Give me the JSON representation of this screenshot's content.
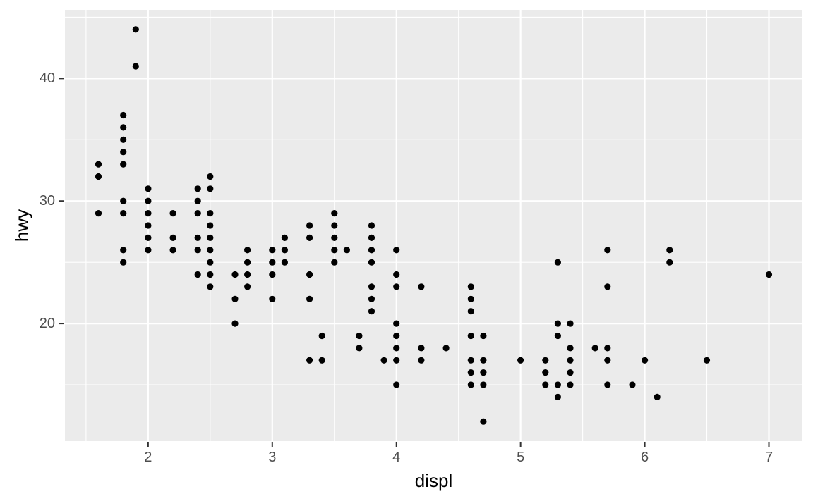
{
  "chart_data": {
    "type": "scatter",
    "title": "",
    "xlabel": "displ",
    "ylabel": "hwy",
    "xlim": [
      1.33,
      7.27
    ],
    "ylim": [
      10.4,
      45.6
    ],
    "x_ticks": [
      2,
      3,
      4,
      5,
      6,
      7
    ],
    "y_ticks": [
      20,
      30,
      40
    ],
    "x_minor_ticks": [
      1.5,
      2.5,
      3.5,
      4.5,
      5.5,
      6.5
    ],
    "y_minor_ticks": [
      15,
      25,
      35,
      45
    ],
    "grid": true,
    "legend_position": "none",
    "theme": {
      "panel_background": "#EBEBEB",
      "grid_color": "#FFFFFF",
      "point_color": "#000000",
      "tick_label_color": "#4D4D4D",
      "axis_title_color": "#000000",
      "tick_mark_color": "#333333",
      "figure_background": "#FFFFFF"
    },
    "points": [
      [
        1.6,
        29
      ],
      [
        1.6,
        32
      ],
      [
        1.6,
        33
      ],
      [
        1.8,
        25
      ],
      [
        1.8,
        26
      ],
      [
        1.8,
        29
      ],
      [
        1.8,
        30
      ],
      [
        1.8,
        33
      ],
      [
        1.8,
        34
      ],
      [
        1.8,
        35
      ],
      [
        1.8,
        36
      ],
      [
        1.8,
        37
      ],
      [
        1.9,
        41
      ],
      [
        1.9,
        44
      ],
      [
        2.0,
        26
      ],
      [
        2.0,
        27
      ],
      [
        2.0,
        28
      ],
      [
        2.0,
        29
      ],
      [
        2.0,
        30
      ],
      [
        2.0,
        31
      ],
      [
        2.2,
        26
      ],
      [
        2.2,
        27
      ],
      [
        2.2,
        29
      ],
      [
        2.4,
        24
      ],
      [
        2.4,
        26
      ],
      [
        2.4,
        27
      ],
      [
        2.4,
        29
      ],
      [
        2.4,
        30
      ],
      [
        2.4,
        31
      ],
      [
        2.5,
        23
      ],
      [
        2.5,
        24
      ],
      [
        2.5,
        25
      ],
      [
        2.5,
        26
      ],
      [
        2.5,
        27
      ],
      [
        2.5,
        28
      ],
      [
        2.5,
        29
      ],
      [
        2.5,
        31
      ],
      [
        2.5,
        32
      ],
      [
        2.7,
        20
      ],
      [
        2.7,
        22
      ],
      [
        2.7,
        24
      ],
      [
        2.8,
        23
      ],
      [
        2.8,
        24
      ],
      [
        2.8,
        25
      ],
      [
        2.8,
        26
      ],
      [
        3.0,
        22
      ],
      [
        3.0,
        24
      ],
      [
        3.0,
        25
      ],
      [
        3.0,
        26
      ],
      [
        3.1,
        25
      ],
      [
        3.1,
        26
      ],
      [
        3.1,
        27
      ],
      [
        3.3,
        17
      ],
      [
        3.3,
        22
      ],
      [
        3.3,
        24
      ],
      [
        3.3,
        27
      ],
      [
        3.3,
        28
      ],
      [
        3.4,
        17
      ],
      [
        3.4,
        19
      ],
      [
        3.5,
        25
      ],
      [
        3.5,
        26
      ],
      [
        3.5,
        27
      ],
      [
        3.5,
        28
      ],
      [
        3.5,
        29
      ],
      [
        3.6,
        26
      ],
      [
        3.7,
        18
      ],
      [
        3.7,
        19
      ],
      [
        3.8,
        21
      ],
      [
        3.8,
        22
      ],
      [
        3.8,
        23
      ],
      [
        3.8,
        25
      ],
      [
        3.8,
        26
      ],
      [
        3.8,
        27
      ],
      [
        3.8,
        28
      ],
      [
        3.9,
        17
      ],
      [
        4.0,
        15
      ],
      [
        4.0,
        17
      ],
      [
        4.0,
        18
      ],
      [
        4.0,
        19
      ],
      [
        4.0,
        20
      ],
      [
        4.0,
        23
      ],
      [
        4.0,
        24
      ],
      [
        4.0,
        26
      ],
      [
        4.2,
        17
      ],
      [
        4.2,
        18
      ],
      [
        4.2,
        23
      ],
      [
        4.4,
        18
      ],
      [
        4.6,
        15
      ],
      [
        4.6,
        16
      ],
      [
        4.6,
        17
      ],
      [
        4.6,
        19
      ],
      [
        4.6,
        21
      ],
      [
        4.6,
        22
      ],
      [
        4.6,
        23
      ],
      [
        4.7,
        12
      ],
      [
        4.7,
        15
      ],
      [
        4.7,
        16
      ],
      [
        4.7,
        17
      ],
      [
        4.7,
        19
      ],
      [
        5.0,
        17
      ],
      [
        5.2,
        15
      ],
      [
        5.2,
        16
      ],
      [
        5.2,
        17
      ],
      [
        5.3,
        14
      ],
      [
        5.3,
        15
      ],
      [
        5.3,
        19
      ],
      [
        5.3,
        20
      ],
      [
        5.3,
        25
      ],
      [
        5.4,
        15
      ],
      [
        5.4,
        16
      ],
      [
        5.4,
        17
      ],
      [
        5.4,
        18
      ],
      [
        5.4,
        20
      ],
      [
        5.6,
        18
      ],
      [
        5.7,
        15
      ],
      [
        5.7,
        17
      ],
      [
        5.7,
        18
      ],
      [
        5.7,
        23
      ],
      [
        5.7,
        26
      ],
      [
        5.9,
        15
      ],
      [
        6.0,
        17
      ],
      [
        6.1,
        14
      ],
      [
        6.2,
        25
      ],
      [
        6.2,
        26
      ],
      [
        6.5,
        17
      ],
      [
        7.0,
        24
      ]
    ]
  }
}
